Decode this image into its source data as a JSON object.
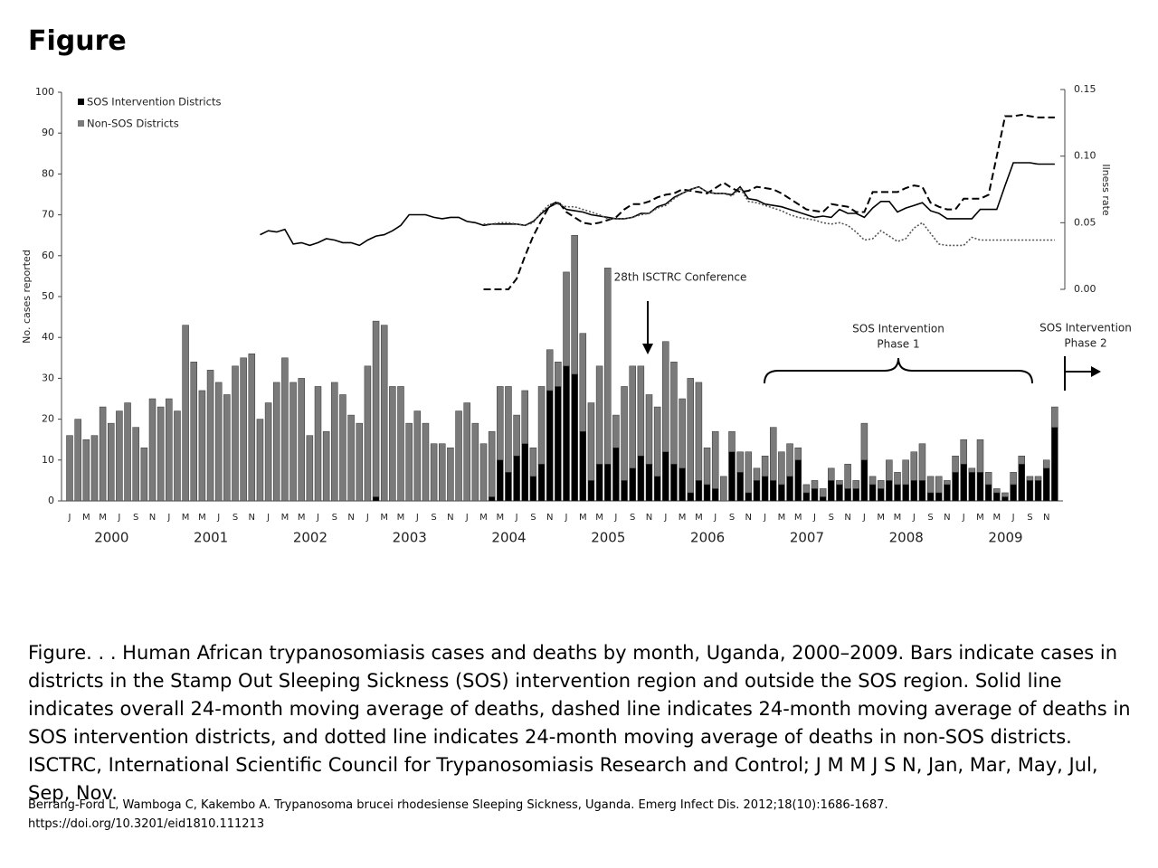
{
  "title": "Figure",
  "chart_data": {
    "type": "bar",
    "stacked": true,
    "categories": [
      "J",
      null,
      "M",
      null,
      "M",
      null,
      "J",
      null,
      "S",
      null,
      "N",
      null,
      "J",
      null,
      "M",
      null,
      "M",
      null,
      "J",
      null,
      "S",
      null,
      "N",
      null,
      "J",
      null,
      "M",
      null,
      "M",
      null,
      "J",
      null,
      "S",
      null,
      "N",
      null,
      "J",
      null,
      "M",
      null,
      "M",
      null,
      "J",
      null,
      "S",
      null,
      "N",
      null,
      "J",
      null,
      "M",
      null,
      "M",
      null,
      "J",
      null,
      "S",
      null,
      "N",
      null,
      "J",
      null,
      "M",
      null,
      "M",
      null,
      "J",
      null,
      "S",
      null,
      "N",
      null,
      "J",
      null,
      "M",
      null,
      "M",
      null,
      "J",
      null,
      "S",
      null,
      "N",
      null,
      "J",
      null,
      "M",
      null,
      "M",
      null,
      "J",
      null,
      "S",
      null,
      "N",
      null,
      "J",
      null,
      "M",
      null,
      "M",
      null,
      "J",
      null,
      "S",
      null,
      "N",
      null,
      "J",
      null,
      "M",
      null,
      "M",
      null,
      "J",
      null,
      "S",
      null,
      "N",
      null
    ],
    "year_labels": [
      "2000",
      "2001",
      "2002",
      "2003",
      "2004",
      "2005",
      "2006",
      "2007",
      "2008",
      "2009"
    ],
    "y_label": "No. cases reported",
    "y2_label": "Ilness rate",
    "ylim": [
      0,
      100
    ],
    "yticks": [
      0,
      10,
      20,
      30,
      40,
      50,
      60,
      70,
      80,
      90,
      100
    ],
    "y2lim": [
      0,
      0.15
    ],
    "y2ticks": [
      {
        "value": 0,
        "label": "0.00"
      },
      {
        "value": 0.05,
        "label": "0.05"
      },
      {
        "value": 0.1,
        "label": "0.10"
      },
      {
        "value": 0.15,
        "label": "0.15"
      }
    ],
    "grid": false,
    "legend": "top-left",
    "series": [
      {
        "name": "SOS Intervention Districts",
        "color": "#000000",
        "values": [
          0,
          0,
          0,
          0,
          0,
          0,
          0,
          0,
          0,
          0,
          0,
          0,
          0,
          0,
          0,
          0,
          0,
          0,
          0,
          0,
          0,
          0,
          0,
          0,
          0,
          0,
          0,
          0,
          0,
          0,
          0,
          0,
          0,
          0,
          0,
          0,
          0,
          1,
          0,
          0,
          0,
          0,
          0,
          0,
          0,
          0,
          0,
          0,
          0,
          0,
          0,
          1,
          10,
          7,
          11,
          14,
          6,
          9,
          27,
          28,
          33,
          31,
          17,
          5,
          9,
          9,
          13,
          5,
          8,
          11,
          9,
          6,
          12,
          9,
          8,
          2,
          5,
          4,
          3,
          0,
          12,
          7,
          2,
          5,
          6,
          5,
          4,
          6,
          10,
          2,
          3,
          1,
          5,
          4,
          3,
          3,
          10,
          4,
          3,
          5,
          4,
          4,
          5,
          5,
          2,
          2,
          4,
          7,
          9,
          7,
          7,
          4,
          2,
          1,
          4,
          9,
          5,
          5,
          8,
          18
        ]
      },
      {
        "name": "Non-SOS Districts",
        "color": "#7a7a7a",
        "values": [
          16,
          20,
          15,
          16,
          23,
          19,
          22,
          24,
          18,
          13,
          25,
          23,
          25,
          22,
          43,
          34,
          27,
          32,
          29,
          26,
          33,
          35,
          36,
          20,
          24,
          29,
          35,
          29,
          30,
          16,
          28,
          17,
          29,
          26,
          21,
          19,
          33,
          43,
          43,
          28,
          28,
          19,
          22,
          19,
          14,
          14,
          13,
          22,
          24,
          19,
          14,
          16,
          18,
          21,
          10,
          13,
          7,
          19,
          10,
          6,
          23,
          34,
          24,
          19,
          24,
          48,
          8,
          23,
          25,
          22,
          17,
          17,
          27,
          25,
          17,
          28,
          24,
          9,
          14,
          6,
          5,
          5,
          10,
          3,
          5,
          13,
          8,
          8,
          3,
          2,
          2,
          2,
          3,
          1,
          6,
          2,
          9,
          2,
          2,
          5,
          3,
          6,
          7,
          9,
          4,
          4,
          1,
          4,
          6,
          1,
          8,
          3,
          1,
          1,
          3,
          2,
          1,
          1,
          2,
          5
        ]
      },
      {
        "type": "line",
        "axis": "y2",
        "color": "#000000",
        "style": "solid",
        "values": [
          null,
          null,
          null,
          null,
          null,
          null,
          null,
          null,
          null,
          null,
          null,
          null,
          null,
          null,
          null,
          null,
          null,
          null,
          null,
          null,
          null,
          null,
          null,
          0.041,
          0.044,
          0.043,
          0.045,
          0.034,
          0.035,
          0.033,
          0.035,
          0.038,
          0.037,
          0.035,
          0.035,
          0.033,
          0.037,
          0.04,
          0.041,
          0.044,
          0.048,
          0.056,
          0.056,
          0.056,
          0.054,
          0.053,
          0.054,
          0.054,
          0.051,
          0.05,
          0.048,
          0.049,
          0.049,
          0.049,
          0.049,
          0.048,
          0.051,
          0.057,
          0.062,
          0.065,
          0.06,
          0.059,
          0.058,
          0.056,
          0.055,
          0.054,
          0.053,
          0.053,
          0.054,
          0.057,
          0.057,
          0.062,
          0.064,
          0.069,
          0.072,
          0.075,
          0.077,
          0.073,
          0.072,
          0.072,
          0.071,
          0.077,
          0.068,
          0.067,
          0.064,
          0.063,
          0.062,
          0.06,
          0.058,
          0.056,
          0.054,
          0.055,
          0.054,
          0.06,
          0.057,
          0.057,
          0.054,
          0.061,
          0.066,
          0.066,
          0.058,
          0.061,
          0.063,
          0.065,
          0.059,
          0.057,
          0.053,
          0.053,
          0.053,
          0.053,
          0.06,
          0.06,
          0.06,
          0.078,
          0.095,
          0.095,
          0.095,
          0.094,
          0.094,
          0.094
        ]
      },
      {
        "type": "line",
        "axis": "y2",
        "color": "#000000",
        "style": "dashed",
        "values": [
          null,
          null,
          null,
          null,
          null,
          null,
          null,
          null,
          null,
          null,
          null,
          null,
          null,
          null,
          null,
          null,
          null,
          null,
          null,
          null,
          null,
          null,
          null,
          null,
          null,
          null,
          null,
          null,
          null,
          null,
          null,
          null,
          null,
          null,
          null,
          null,
          null,
          null,
          null,
          null,
          null,
          null,
          null,
          null,
          null,
          null,
          null,
          null,
          null,
          null,
          0,
          0,
          0,
          0,
          0.008,
          0.025,
          0.04,
          0.052,
          0.063,
          0.066,
          0.058,
          0.054,
          0.05,
          0.049,
          0.05,
          0.052,
          0.054,
          0.06,
          0.064,
          0.064,
          0.066,
          0.069,
          0.071,
          0.072,
          0.075,
          0.074,
          0.073,
          0.072,
          0.076,
          0.08,
          0.076,
          0.073,
          0.074,
          0.077,
          0.076,
          0.075,
          0.072,
          0.068,
          0.064,
          0.06,
          0.059,
          0.058,
          0.064,
          0.063,
          0.062,
          0.058,
          0.058,
          0.073,
          0.073,
          0.073,
          0.073,
          0.076,
          0.078,
          0.077,
          0.065,
          0.062,
          0.06,
          0.06,
          0.068,
          0.068,
          0.068,
          0.071,
          0.1,
          0.13,
          0.13,
          0.131,
          0.13,
          0.129,
          0.129,
          0.129
        ]
      },
      {
        "type": "line",
        "axis": "y2",
        "color": "#555555",
        "style": "dotted",
        "values": [
          null,
          null,
          null,
          null,
          null,
          null,
          null,
          null,
          null,
          null,
          null,
          null,
          null,
          null,
          null,
          null,
          null,
          null,
          null,
          null,
          null,
          null,
          null,
          null,
          null,
          null,
          null,
          null,
          null,
          null,
          null,
          null,
          null,
          null,
          null,
          null,
          null,
          null,
          null,
          null,
          null,
          null,
          null,
          null,
          null,
          null,
          null,
          null,
          null,
          null,
          0.049,
          0.049,
          0.05,
          0.05,
          0.049,
          0.048,
          0.05,
          0.058,
          0.064,
          0.064,
          0.062,
          0.062,
          0.06,
          0.058,
          0.056,
          0.053,
          0.053,
          0.053,
          0.054,
          0.056,
          0.057,
          0.061,
          0.063,
          0.068,
          0.072,
          0.075,
          0.077,
          0.073,
          0.072,
          0.072,
          0.07,
          0.076,
          0.066,
          0.065,
          0.063,
          0.061,
          0.059,
          0.056,
          0.054,
          0.053,
          0.052,
          0.05,
          0.049,
          0.05,
          0.048,
          0.043,
          0.037,
          0.038,
          0.044,
          0.04,
          0.036,
          0.038,
          0.046,
          0.05,
          0.042,
          0.034,
          0.033,
          0.033,
          0.033,
          0.039,
          0.037,
          0.037,
          0.037,
          0.037,
          0.037,
          0.037,
          0.037,
          0.037,
          0.037,
          0.037
        ]
      }
    ],
    "annotations": {
      "conference": "28th ISCTRC Conference",
      "phase1": [
        "SOS Intervention",
        "Phase 1"
      ],
      "phase2": [
        "SOS Intervention",
        "Phase 2"
      ]
    }
  },
  "caption": "Figure. . . Human African trypanosomiasis cases and deaths by month, Uganda, 2000–2009. Bars indicate cases in districts in the Stamp Out Sleeping Sickness (SOS) intervention region and outside the SOS region. Solid line indicates overall 24-month moving average of deaths, dashed line indicates 24-month moving average of deaths in SOS intervention districts, and dotted line indicates 24-month moving average of deaths in non-SOS districts. ISCTRC, International Scientific Council for Trypanosomiasis Research and Control; J M M J S N, Jan, Mar, May, Jul, Sep, Nov.",
  "citation": [
    "Berrang-Ford L, Wamboga C, Kakembo A. Trypanosoma brucei rhodesiense Sleeping Sickness, Uganda. Emerg Infect Dis. 2012;18(10):1686-1687.",
    "https://doi.org/10.3201/eid1810.111213"
  ]
}
